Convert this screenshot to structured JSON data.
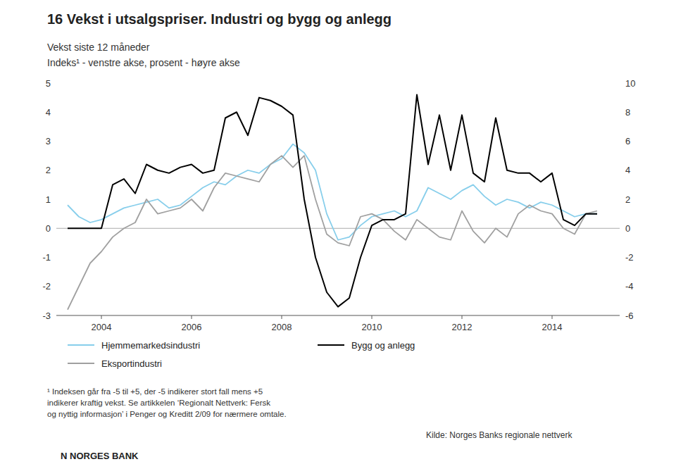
{
  "chart_data": {
    "type": "line",
    "title": "16  Vekst i utsalgspriser. Industri og bygg og anlegg",
    "subtitle": [
      "Vekst siste 12 måneder",
      "Indeks¹ - venstre akse, prosent - høyre akse"
    ],
    "annotations": [
      "¹ Indeksen går fra -5 til +5, der -5 indikerer stort fall mens +5\nindikerer kraftig vekst. Se artikkelen ‘Regionalt Nettverk: Fersk\nog nyttig informasjon’ i Penger og Kreditt 2/09 for nærmere omtale.",
      "Kilde: Norges Banks regionale nettverk",
      "N  NORGES BANK"
    ],
    "x": [
      2003.25,
      2003.5,
      2003.75,
      2004.0,
      2004.25,
      2004.5,
      2004.75,
      2005.0,
      2005.25,
      2005.5,
      2005.75,
      2006.0,
      2006.25,
      2006.5,
      2006.75,
      2007.0,
      2007.25,
      2007.5,
      2007.75,
      2008.0,
      2008.25,
      2008.5,
      2008.75,
      2009.0,
      2009.25,
      2009.5,
      2009.75,
      2010.0,
      2010.25,
      2010.5,
      2010.75,
      2011.0,
      2011.25,
      2011.5,
      2011.75,
      2012.0,
      2012.25,
      2012.5,
      2012.75,
      2013.0,
      2013.25,
      2013.5,
      2013.75,
      2014.0,
      2014.25,
      2014.5,
      2014.75,
      2015.0
    ],
    "xlim": [
      2003.0,
      2015.5
    ],
    "xticks": [
      2004,
      2006,
      2008,
      2010,
      2012,
      2014
    ],
    "ylim": [
      -3,
      5
    ],
    "yticks": [
      -3,
      -2,
      -1,
      0,
      1,
      2,
      3,
      4,
      5
    ],
    "y2lim": [
      -6,
      10
    ],
    "y2ticks": [
      -6,
      -4,
      -2,
      0,
      2,
      4,
      6,
      8,
      10
    ],
    "grid": false,
    "legend": "bottom",
    "series": [
      {
        "name": "Hjemmemarkedsindustri",
        "color": "#87CEEB",
        "values": [
          0.8,
          0.4,
          0.2,
          0.3,
          0.5,
          0.7,
          0.8,
          0.9,
          1.0,
          0.7,
          0.8,
          1.1,
          1.4,
          1.6,
          1.5,
          1.8,
          2.0,
          1.9,
          2.2,
          2.4,
          2.9,
          2.6,
          2.0,
          0.5,
          -0.4,
          -0.3,
          0.1,
          0.4,
          0.5,
          0.6,
          0.4,
          0.6,
          1.4,
          1.2,
          1.0,
          1.3,
          1.5,
          1.1,
          0.8,
          1.0,
          0.9,
          0.7,
          0.9,
          0.8,
          0.6,
          0.4,
          0.5,
          0.5
        ]
      },
      {
        "name": "Eksportindustri",
        "color": "#A0A0A0",
        "values": [
          -2.8,
          -2.0,
          -1.2,
          -0.8,
          -0.3,
          0.0,
          0.2,
          1.0,
          0.5,
          0.6,
          0.7,
          1.0,
          0.6,
          1.4,
          1.9,
          1.8,
          1.7,
          1.6,
          2.2,
          2.5,
          2.1,
          2.5,
          1.0,
          -0.2,
          -0.5,
          -0.6,
          0.4,
          0.5,
          0.3,
          -0.1,
          -0.4,
          0.3,
          0.0,
          -0.3,
          -0.4,
          0.6,
          -0.1,
          -0.5,
          0.0,
          -0.3,
          0.5,
          0.8,
          0.6,
          0.5,
          0.0,
          -0.2,
          0.5,
          0.6
        ]
      },
      {
        "name": "Bygg og anlegg",
        "color": "#000000",
        "axis": "y2",
        "values": [
          0.0,
          0.0,
          0.0,
          0.0,
          3.0,
          3.4,
          2.4,
          4.4,
          4.0,
          3.8,
          4.2,
          4.4,
          3.8,
          4.0,
          7.6,
          8.0,
          6.4,
          9.0,
          8.8,
          8.4,
          7.8,
          2.0,
          -2.0,
          -4.4,
          -5.4,
          -4.8,
          -2.0,
          0.2,
          0.6,
          0.6,
          1.0,
          9.2,
          4.4,
          7.8,
          4.0,
          7.8,
          3.8,
          3.2,
          7.6,
          4.0,
          3.8,
          3.8,
          3.2,
          3.8,
          0.6,
          0.2,
          1.0,
          1.0
        ]
      }
    ]
  }
}
